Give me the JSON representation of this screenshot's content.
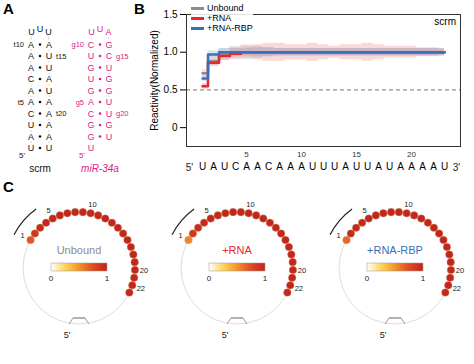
{
  "chart_data": {
    "type": "line",
    "panel_label": "B",
    "title": "scrm",
    "ylabel": "Reactivity(Normalized)",
    "categories": [
      "U",
      "A",
      "U",
      "C",
      "A",
      "A",
      "C",
      "A",
      "A",
      "A",
      "U",
      "U",
      "U",
      "A",
      "U",
      "U",
      "A",
      "U",
      "A",
      "A",
      "A",
      "A",
      "U"
    ],
    "position_labels": [
      5,
      10,
      15,
      20
    ],
    "end_labels": [
      "5'",
      "3'"
    ],
    "ylim": [
      -0.25,
      1.5
    ],
    "yticks": [
      0,
      0.5,
      {
        "value": 1,
        "label": "1.0"
      },
      1.5
    ],
    "reference_line": 0.5,
    "legend": "top-left",
    "series": [
      {
        "name": "Unbound",
        "color": "#8c8c8c",
        "values": [
          0.72,
          0.88,
          0.97,
          1,
          1,
          1,
          1,
          1,
          1,
          1,
          1,
          1,
          1,
          1,
          1,
          1,
          1,
          1,
          1,
          1,
          1,
          1,
          1
        ],
        "errors": [
          0.05,
          0.06,
          0.08,
          0.08,
          0.1,
          0.08,
          0.06,
          0.05,
          0.05,
          0.05,
          0.05,
          0.05,
          0.05,
          0.05,
          0.05,
          0.05,
          0.05,
          0.05,
          0.05,
          0.05,
          0.05,
          0.05,
          0.05
        ]
      },
      {
        "name": "+RNA",
        "color": "#e8262b",
        "values": [
          0.55,
          0.86,
          0.95,
          0.98,
          1,
          1,
          1,
          1,
          1,
          1,
          1,
          1,
          1,
          1,
          1,
          1,
          1,
          1,
          1,
          1,
          1,
          1,
          1
        ],
        "errors": [
          0.04,
          0.05,
          0.06,
          0.08,
          0.08,
          0.1,
          0.12,
          0.12,
          0.1,
          0.1,
          0.12,
          0.1,
          0.08,
          0.1,
          0.1,
          0.12,
          0.1,
          0.08,
          0.08,
          0.08,
          0.06,
          0.06,
          0.05
        ]
      },
      {
        "name": "+RNA-RBP",
        "color": "#3b6fb6",
        "values": [
          0.65,
          0.97,
          1,
          1,
          1,
          1,
          1,
          1,
          1,
          1,
          1,
          1,
          1,
          1,
          1,
          1,
          1,
          1,
          1,
          1,
          1,
          1,
          1
        ],
        "errors": [
          0.04,
          0.05,
          0.05,
          0.05,
          0.05,
          0.06,
          0.06,
          0.05,
          0.05,
          0.05,
          0.05,
          0.05,
          0.05,
          0.05,
          0.05,
          0.05,
          0.05,
          0.05,
          0.05,
          0.05,
          0.05,
          0.05,
          0.04
        ]
      }
    ]
  },
  "panel_a": {
    "panel_label": "A",
    "five_prime": "5'",
    "structures": [
      {
        "name": "scrm",
        "color": "#111111",
        "sequence": [
          "U",
          "A",
          "U",
          "C",
          "A",
          "A",
          "C",
          "A",
          "A",
          "A",
          "U",
          "U",
          "U",
          "A",
          "U",
          "U",
          "A",
          "U",
          "A",
          "A",
          "A",
          "A",
          "U"
        ],
        "position_labels": [
          {
            "value": 5,
            "label": "t5"
          },
          {
            "value": 10,
            "label": "t10"
          },
          {
            "value": 15,
            "label": "t15"
          },
          {
            "value": 20,
            "label": "t20"
          }
        ]
      },
      {
        "name": "miR-34a",
        "color": "#d6228a",
        "sequence": [
          "U",
          "G",
          "G",
          "C",
          "A",
          "G",
          "U",
          "G",
          "U",
          "C",
          "U",
          "U",
          "A",
          "G",
          "C",
          "U",
          "G",
          "G",
          "U",
          "U",
          "G",
          "U"
        ],
        "position_labels": [
          {
            "value": 5,
            "label": "g5"
          },
          {
            "value": 10,
            "label": "g10"
          },
          {
            "value": 15,
            "label": "g15"
          },
          {
            "value": 20,
            "label": "g20"
          }
        ]
      }
    ]
  },
  "panel_c": {
    "panel_label": "C",
    "five_prime": "5'",
    "circle_labels": [
      1,
      5,
      10,
      20,
      22
    ],
    "colorbar": {
      "range": [
        0,
        1
      ],
      "ticks": [
        0,
        1
      ]
    }
  }
}
